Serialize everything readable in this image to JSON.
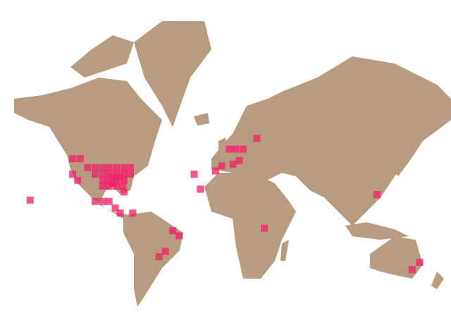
{
  "map": {
    "projection": "mercator",
    "colors": {
      "land": "#b89c7f",
      "water": "#ffffff",
      "marker": "#f2226a"
    },
    "cell_size_deg": 5.6,
    "cells": [
      [
        47,
        -122
      ],
      [
        47,
        -116
      ],
      [
        42,
        -110
      ],
      [
        42,
        -104
      ],
      [
        42,
        -98
      ],
      [
        42,
        -93
      ],
      [
        42,
        -87
      ],
      [
        42,
        -81
      ],
      [
        42,
        -76
      ],
      [
        38,
        -122
      ],
      [
        38,
        -104
      ],
      [
        38,
        -98
      ],
      [
        38,
        -93
      ],
      [
        38,
        -87
      ],
      [
        38,
        -81
      ],
      [
        38,
        -76
      ],
      [
        34,
        -118
      ],
      [
        34,
        -98
      ],
      [
        34,
        -93
      ],
      [
        34,
        -87
      ],
      [
        34,
        -81
      ],
      [
        30,
        -98
      ],
      [
        30,
        -93
      ],
      [
        30,
        -87
      ],
      [
        30,
        -82
      ],
      [
        36,
        -90
      ],
      [
        36,
        -84
      ],
      [
        32,
        -90
      ],
      [
        26,
        -81
      ],
      [
        20,
        -156
      ],
      [
        19,
        -104
      ],
      [
        19,
        -98
      ],
      [
        19,
        -93
      ],
      [
        14,
        -88
      ],
      [
        10,
        -84
      ],
      [
        10,
        -74
      ],
      [
        -4,
        -42
      ],
      [
        -8,
        -37
      ],
      [
        -20,
        -48
      ],
      [
        -24,
        -53
      ],
      [
        40,
        -8
      ],
      [
        43,
        -3
      ],
      [
        52,
        3
      ],
      [
        52,
        8
      ],
      [
        52,
        14
      ],
      [
        46,
        11
      ],
      [
        44,
        6
      ],
      [
        57,
        25
      ],
      [
        38,
        -25
      ],
      [
        28,
        -20
      ],
      [
        -2,
        31
      ],
      [
        24,
        121
      ],
      [
        -28,
        155
      ],
      [
        -33,
        149
      ]
    ]
  }
}
